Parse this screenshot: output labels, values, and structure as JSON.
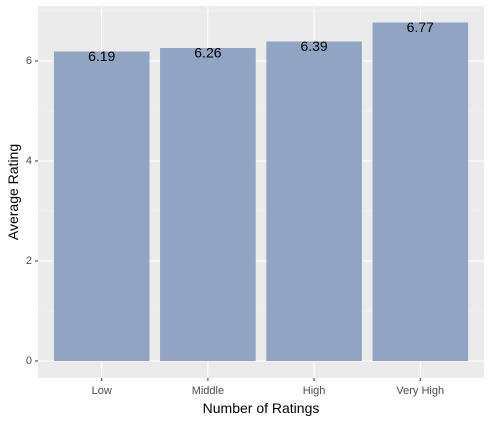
{
  "chart_data": {
    "type": "bar",
    "categories": [
      "Low",
      "Middle",
      "High",
      "Very High"
    ],
    "values": [
      6.19,
      6.26,
      6.39,
      6.77
    ],
    "data_labels": [
      "6.19",
      "6.26",
      "6.39",
      "6.77"
    ],
    "title": "",
    "xlabel": "Number of Ratings",
    "ylabel": "Average Rating",
    "ylim": [
      -0.34,
      7.1
    ],
    "yticks": [
      0,
      2,
      4,
      6
    ],
    "ytick_labels": [
      "0",
      "2",
      "4",
      "6"
    ],
    "grid": true,
    "legend": "none",
    "colors": {
      "bar": "#91a4c3",
      "panel": "#ebebeb",
      "grid_major": "#ffffff",
      "grid_minor": "#f5f5f5"
    }
  }
}
